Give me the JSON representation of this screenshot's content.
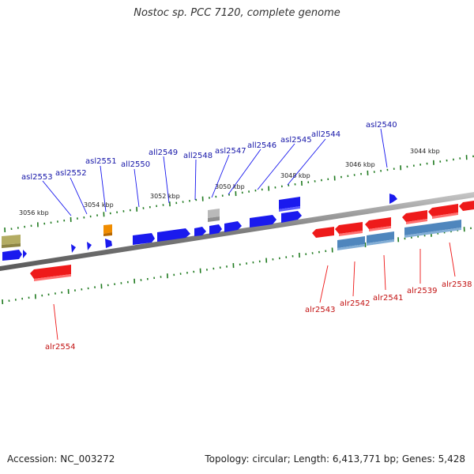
{
  "title": "Nostoc sp. PCC 7120, complete genome",
  "footer": {
    "accession": "Accession: NC_003272",
    "summary": "Topology: circular; Length: 6,413,771 bp; Genes: 5,428"
  },
  "colors": {
    "forward_gene": "#1a1aee",
    "reverse_gene": "#ee1a1a",
    "reverse_gene_steel": "#4f86bd",
    "orange_gene": "#f08c00",
    "grey_gene": "#b9b9b9",
    "olive_gene": "#b3ac63",
    "backbone": "#7d7d7d",
    "tick": "#1f7a1f",
    "label_blue": "#1515a8",
    "label_red": "#c21010"
  },
  "scale_labels": [
    "3056 kbp",
    "3054 kbp",
    "3052 kbp",
    "3050 kbp",
    "3048 kbp",
    "3046 kbp",
    "3044 kbp"
  ],
  "gene_labels_forward": [
    "asl2553",
    "asl2552",
    "asl2551",
    "all2550",
    "all2549",
    "all2548",
    "asl2547",
    "all2546",
    "asl2545",
    "all2544",
    "asl2540"
  ],
  "gene_labels_reverse": [
    "alr2554",
    "alr2543",
    "alr2542",
    "alr2541",
    "alr2539",
    "alr2538"
  ]
}
